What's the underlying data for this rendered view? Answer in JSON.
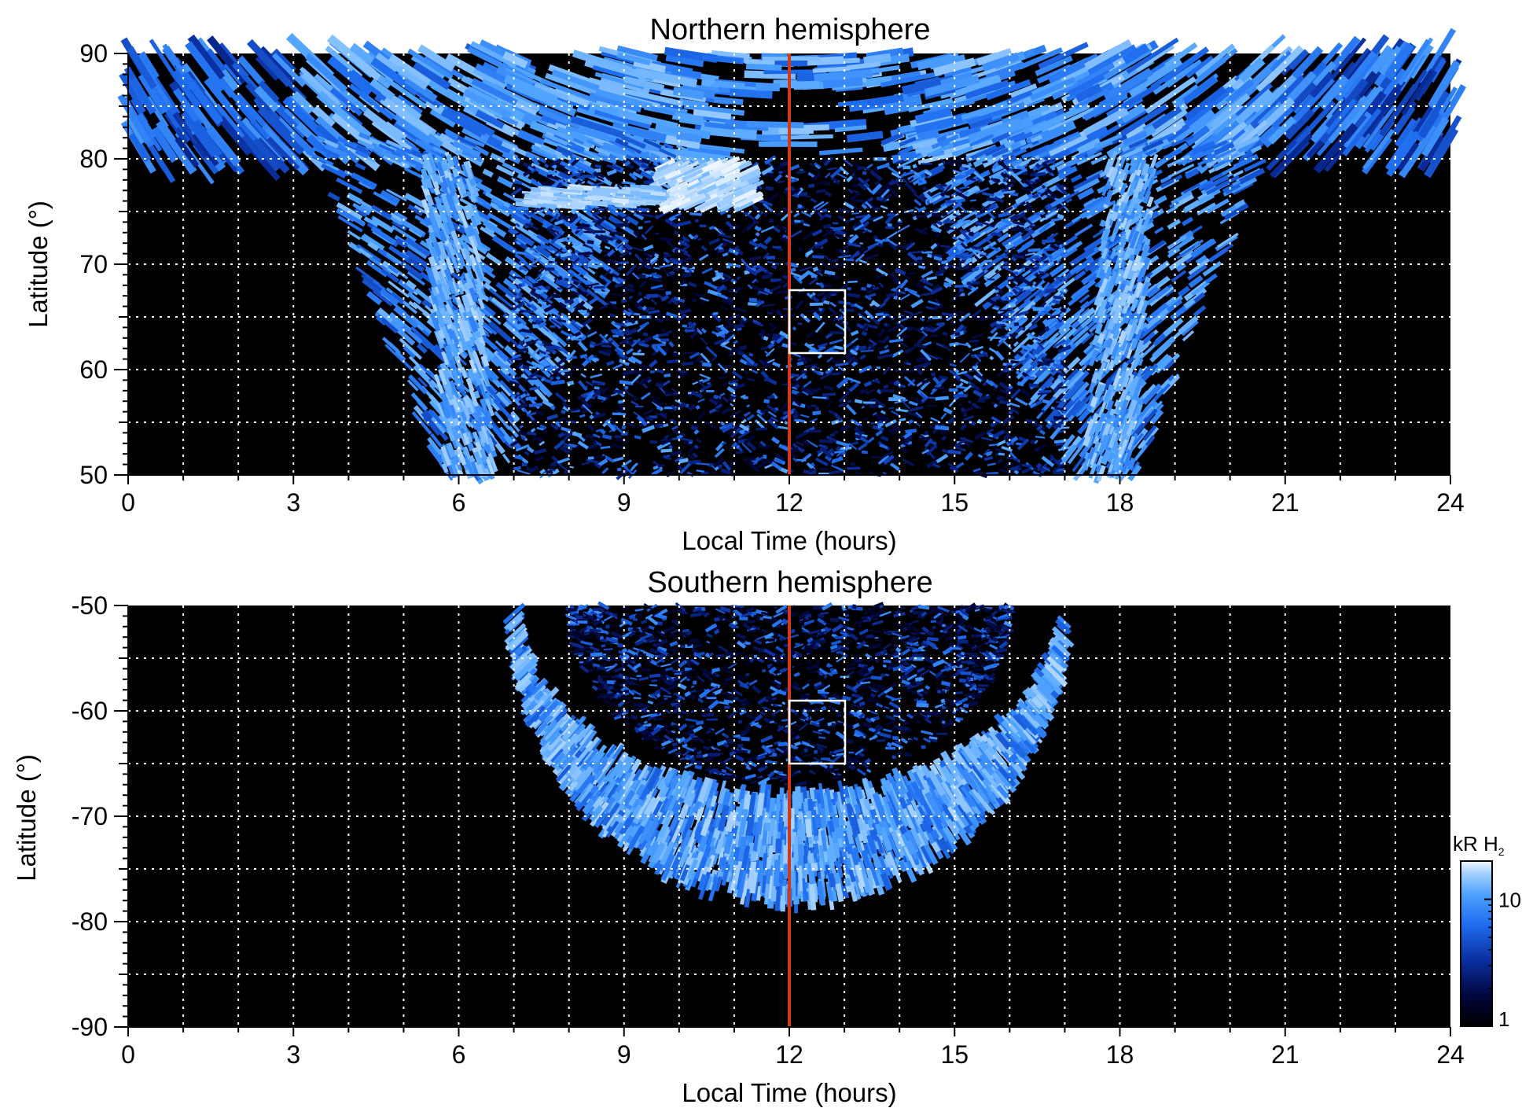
{
  "chart_data": [
    {
      "id": "north",
      "type": "heatmap",
      "title": "Northern hemisphere",
      "xlabel": "Local Time (hours)",
      "ylabel": "Latitude (°)",
      "xlim": [
        0,
        24
      ],
      "ylim": [
        50,
        90
      ],
      "x_ticks": [
        0,
        3,
        6,
        9,
        12,
        15,
        18,
        21,
        24
      ],
      "y_ticks": [
        50,
        60,
        70,
        80,
        90
      ],
      "grid": true,
      "grid_x_step_hours": 1,
      "grid_y_step_deg": 5,
      "noon_line_hour": 12,
      "noon_line_color": "#d2391a",
      "box": {
        "lt": [
          12,
          13
        ],
        "lat": [
          61.5,
          67.5
        ]
      },
      "emission_features": [
        {
          "name": "polar cap",
          "lat_range": [
            80,
            90
          ],
          "lt_range": [
            0,
            24
          ]
        },
        {
          "name": "dawn arc",
          "lt_center": 6.2,
          "lat_range": [
            50,
            80
          ]
        },
        {
          "name": "dusk arc",
          "lt_center": 17.8,
          "lat_range": [
            50,
            80
          ]
        },
        {
          "name": "bright spot",
          "lt_center": 10.5,
          "lat_center": 78
        },
        {
          "name": "dayside speckle",
          "lt_range": [
            7,
            17
          ],
          "lat_range": [
            50,
            80
          ]
        }
      ]
    },
    {
      "id": "south",
      "type": "heatmap",
      "title": "Southern hemisphere",
      "xlabel": "Local Time (hours)",
      "ylabel": "Latitude (°)",
      "xlim": [
        0,
        24
      ],
      "ylim": [
        -90,
        -50
      ],
      "x_ticks": [
        0,
        3,
        6,
        9,
        12,
        15,
        18,
        21,
        24
      ],
      "y_ticks": [
        -90,
        -80,
        -70,
        -60,
        -50
      ],
      "grid": true,
      "grid_x_step_hours": 1,
      "grid_y_step_deg": 5,
      "noon_line_hour": 12,
      "noon_line_color": "#d2391a",
      "box": {
        "lt": [
          12,
          13
        ],
        "lat": [
          -65,
          -59
        ]
      },
      "emission_features": [
        {
          "name": "auroral oval",
          "lt_range": [
            7,
            17
          ],
          "lat_range": [
            -79,
            -50
          ]
        }
      ]
    }
  ],
  "colorbar": {
    "label": "kR H",
    "label_subscript": "2",
    "scale": "log",
    "range": [
      1,
      20
    ],
    "ticks": [
      1,
      10
    ],
    "colors": [
      "#000000",
      "#00063a",
      "#0a2fa0",
      "#1f6ef0",
      "#4fa3ff",
      "#a7d2ff",
      "#f2f8ff"
    ]
  }
}
